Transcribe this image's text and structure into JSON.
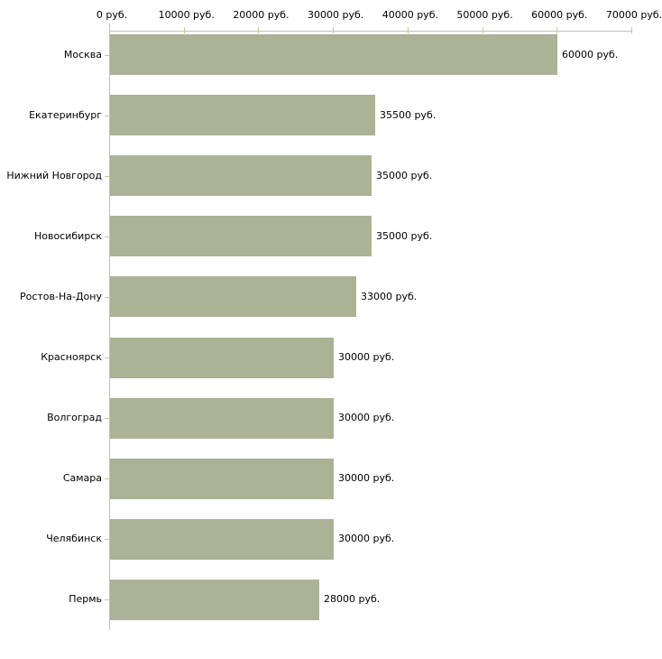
{
  "chart_data": {
    "type": "bar",
    "orientation": "horizontal",
    "title": "",
    "xlabel": "",
    "ylabel": "",
    "unit": "руб.",
    "categories": [
      "Москва",
      "Екатеринбург",
      "Нижний Новгород",
      "Новосибирск",
      "Ростов-На-Дону",
      "Красноярск",
      "Волгоград",
      "Самара",
      "Челябинск",
      "Пермь"
    ],
    "values": [
      60000,
      35500,
      35000,
      35000,
      33000,
      30000,
      30000,
      30000,
      30000,
      28000
    ],
    "value_labels": [
      "60000 руб.",
      "35500 руб.",
      "35000 руб.",
      "35000 руб.",
      "33000 руб.",
      "30000 руб.",
      "30000 руб.",
      "30000 руб.",
      "30000 руб.",
      "28000 руб."
    ],
    "x_axis": {
      "position": "top",
      "min": 0,
      "max": 70000,
      "tick_interval": 10000,
      "tick_values": [
        0,
        10000,
        20000,
        30000,
        40000,
        50000,
        60000,
        70000
      ],
      "tick_labels": [
        "0 руб.",
        "10000 руб.",
        "20000 руб.",
        "30000 руб.",
        "40000 руб.",
        "50000 руб.",
        "60000 руб.",
        "70000 руб."
      ]
    },
    "legend": null,
    "grid": false,
    "colors": {
      "bar_fill": "#acb296",
      "axis_line": "#c0c0c0",
      "tick_mark": "#cccc99",
      "text": "#000000",
      "background": "#ffffff"
    }
  }
}
